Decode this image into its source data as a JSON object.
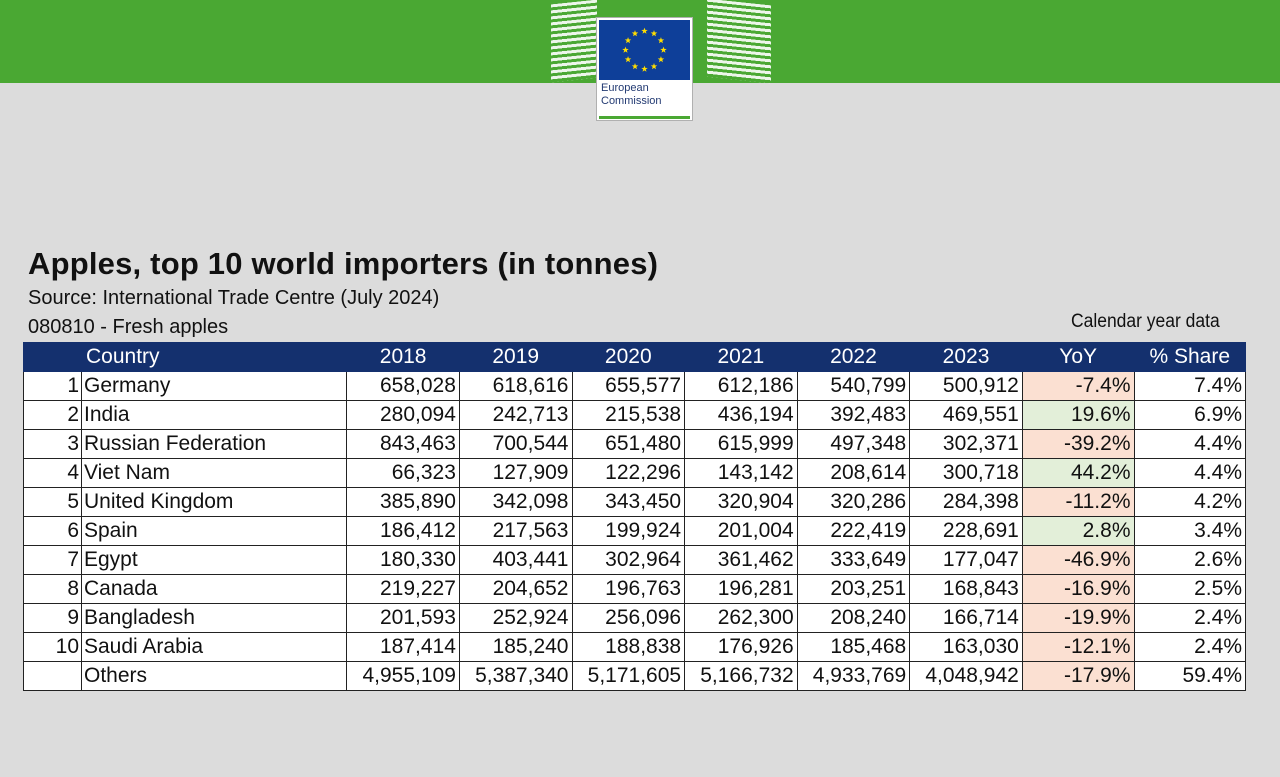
{
  "header": {
    "logo_line1": "European",
    "logo_line2": "Commission",
    "colors": {
      "bar": "#4aa833",
      "flag": "#0e3f99",
      "stars": "#ffdd00"
    }
  },
  "title": "Apples, top 10 world importers (in tonnes)",
  "source": "Source: International Trade Centre (July 2024)",
  "product": "080810 - Fresh apples",
  "note": "Calendar year data",
  "table": {
    "columns": [
      "",
      "Country",
      "2018",
      "2019",
      "2020",
      "2021",
      "2022",
      "2023",
      "YoY",
      "% Share"
    ],
    "rows": [
      {
        "rank": "1",
        "country": "Germany",
        "values": [
          "658,028",
          "618,616",
          "655,577",
          "612,186",
          "540,799",
          "500,912"
        ],
        "yoy": "-7.4%",
        "share": "7.4%",
        "trend": "neg"
      },
      {
        "rank": "2",
        "country": "India",
        "values": [
          "280,094",
          "242,713",
          "215,538",
          "436,194",
          "392,483",
          "469,551"
        ],
        "yoy": "19.6%",
        "share": "6.9%",
        "trend": "pos"
      },
      {
        "rank": "3",
        "country": "Russian Federation",
        "values": [
          "843,463",
          "700,544",
          "651,480",
          "615,999",
          "497,348",
          "302,371"
        ],
        "yoy": "-39.2%",
        "share": "4.4%",
        "trend": "neg"
      },
      {
        "rank": "4",
        "country": "Viet Nam",
        "values": [
          "66,323",
          "127,909",
          "122,296",
          "143,142",
          "208,614",
          "300,718"
        ],
        "yoy": "44.2%",
        "share": "4.4%",
        "trend": "pos"
      },
      {
        "rank": "5",
        "country": "United Kingdom",
        "values": [
          "385,890",
          "342,098",
          "343,450",
          "320,904",
          "320,286",
          "284,398"
        ],
        "yoy": "-11.2%",
        "share": "4.2%",
        "trend": "neg"
      },
      {
        "rank": "6",
        "country": "Spain",
        "values": [
          "186,412",
          "217,563",
          "199,924",
          "201,004",
          "222,419",
          "228,691"
        ],
        "yoy": "2.8%",
        "share": "3.4%",
        "trend": "pos"
      },
      {
        "rank": "7",
        "country": "Egypt",
        "values": [
          "180,330",
          "403,441",
          "302,964",
          "361,462",
          "333,649",
          "177,047"
        ],
        "yoy": "-46.9%",
        "share": "2.6%",
        "trend": "neg"
      },
      {
        "rank": "8",
        "country": "Canada",
        "values": [
          "219,227",
          "204,652",
          "196,763",
          "196,281",
          "203,251",
          "168,843"
        ],
        "yoy": "-16.9%",
        "share": "2.5%",
        "trend": "neg"
      },
      {
        "rank": "9",
        "country": "Bangladesh",
        "values": [
          "201,593",
          "252,924",
          "256,096",
          "262,300",
          "208,240",
          "166,714"
        ],
        "yoy": "-19.9%",
        "share": "2.4%",
        "trend": "neg"
      },
      {
        "rank": "10",
        "country": "Saudi Arabia",
        "values": [
          "187,414",
          "185,240",
          "188,838",
          "176,926",
          "185,468",
          "163,030"
        ],
        "yoy": "-12.1%",
        "share": "2.4%",
        "trend": "neg"
      },
      {
        "rank": "",
        "country": "Others",
        "values": [
          "4,955,109",
          "5,387,340",
          "5,171,605",
          "5,166,732",
          "4,933,769",
          "4,048,942"
        ],
        "yoy": "-17.9%",
        "share": "59.4%",
        "trend": "neg"
      }
    ]
  }
}
